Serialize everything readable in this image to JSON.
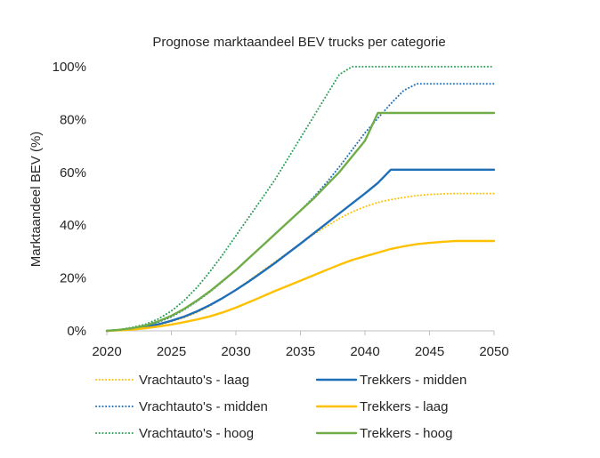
{
  "chart_data": {
    "type": "line",
    "title": "Prognose marktaandeel BEV trucks per categorie",
    "xlabel": "",
    "ylabel": "Marktaandeel BEV (%)",
    "xlim": [
      2020,
      2050
    ],
    "ylim": [
      0,
      100
    ],
    "x_ticks": [
      2020,
      2025,
      2030,
      2035,
      2040,
      2045,
      2050
    ],
    "y_ticks": [
      0,
      20,
      40,
      60,
      80,
      100
    ],
    "y_tick_labels": [
      "0%",
      "20%",
      "40%",
      "60%",
      "80%",
      "100%"
    ],
    "grid": false,
    "legend_position": "bottom",
    "x": [
      2020,
      2021,
      2022,
      2023,
      2024,
      2025,
      2026,
      2027,
      2028,
      2029,
      2030,
      2031,
      2032,
      2033,
      2034,
      2035,
      2036,
      2037,
      2038,
      2039,
      2040,
      2041,
      2042,
      2043,
      2044,
      2045,
      2046,
      2047,
      2048,
      2049,
      2050
    ],
    "series": [
      {
        "name": "Vrachtauto's - laag",
        "color": "#FFC000",
        "style": "dotted",
        "values": [
          0,
          0.3,
          0.7,
          1.3,
          2.2,
          3.5,
          5,
          7,
          9.5,
          12.5,
          15.5,
          19,
          22.5,
          26,
          29.5,
          33,
          36.5,
          39.5,
          42.5,
          45,
          47,
          48.6,
          49.7,
          50.5,
          51.2,
          51.6,
          51.9,
          52,
          52,
          52,
          52
        ]
      },
      {
        "name": "Vrachtauto's - midden",
        "color": "#1F6FB8",
        "style": "dotted",
        "values": [
          0,
          0.4,
          0.9,
          1.8,
          3.3,
          5.3,
          8,
          11.2,
          14.8,
          18.8,
          23,
          27.5,
          32,
          36.5,
          41,
          45.5,
          50.5,
          56,
          62,
          68.5,
          75,
          80.5,
          86,
          91,
          93.5,
          93.5,
          93.5,
          93.5,
          93.5,
          93.5,
          93.5
        ]
      },
      {
        "name": "Vrachtauto's - hoog",
        "color": "#2CA05A",
        "style": "dotted",
        "values": [
          0,
          0.5,
          1.3,
          2.5,
          4.5,
          7.5,
          11.5,
          16.5,
          22.5,
          29,
          36,
          43,
          50,
          57,
          65,
          73,
          81,
          89,
          97,
          100,
          100,
          100,
          100,
          100,
          100,
          100,
          100,
          100,
          100,
          100,
          100
        ]
      },
      {
        "name": "Trekkers - midden",
        "color": "#1F6FB8",
        "style": "solid",
        "values": [
          0,
          0.3,
          0.8,
          1.5,
          2.5,
          3.8,
          5.4,
          7.4,
          9.8,
          12.5,
          15.5,
          18.7,
          22.1,
          25.6,
          29.3,
          33,
          36.8,
          40.6,
          44.4,
          48.2,
          52,
          56,
          61,
          61,
          61,
          61,
          61,
          61,
          61,
          61,
          61
        ]
      },
      {
        "name": "Trekkers - laag",
        "color": "#FFC000",
        "style": "solid",
        "values": [
          0,
          0.2,
          0.5,
          1,
          1.6,
          2.4,
          3.3,
          4.3,
          5.5,
          7,
          8.8,
          10.8,
          12.9,
          15,
          17,
          19,
          21,
          23,
          25,
          26.8,
          28.2,
          29.6,
          31,
          32,
          32.8,
          33.3,
          33.7,
          34,
          34,
          34,
          34
        ]
      },
      {
        "name": "Trekkers - hoog",
        "color": "#70AD47",
        "style": "solid",
        "values": [
          0,
          0.4,
          1,
          2,
          3.6,
          5.7,
          8.3,
          11.5,
          15,
          19,
          23,
          27.5,
          32,
          36.5,
          41,
          45.5,
          50,
          55,
          60,
          66,
          72,
          82.5,
          82.5,
          82.5,
          82.5,
          82.5,
          82.5,
          82.5,
          82.5,
          82.5,
          82.5
        ]
      }
    ]
  }
}
